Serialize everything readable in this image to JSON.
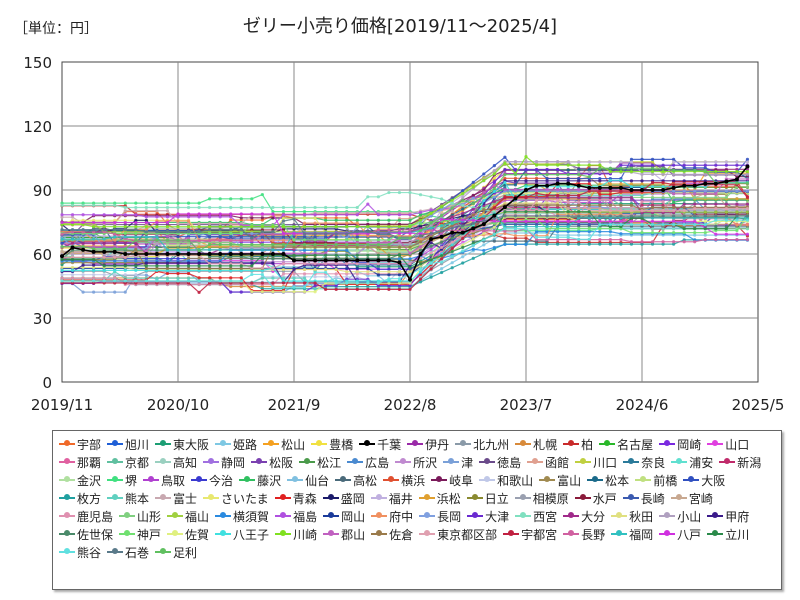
{
  "chart_data": {
    "type": "line",
    "unit_label": "［単位：円］",
    "title": "ゼリー小売り価格[2019/11～2025/4]",
    "ylim": [
      0,
      150
    ],
    "yticks": [
      0,
      30,
      60,
      90,
      120,
      150
    ],
    "x_tick_labels": [
      "2019/11",
      "2020/10",
      "2021/9",
      "2022/8",
      "2023/7",
      "2024/6",
      "2025/5"
    ],
    "x_tick_index": [
      0,
      11,
      22,
      33,
      44,
      55,
      66
    ],
    "n_points": 66,
    "series": [
      {
        "name": "宇部",
        "color": "#f06a2a"
      },
      {
        "name": "旭川",
        "color": "#1f5fd6"
      },
      {
        "name": "東大阪",
        "color": "#1c9e74"
      },
      {
        "name": "姫路",
        "color": "#7ec8e3"
      },
      {
        "name": "松山",
        "color": "#f4a020"
      },
      {
        "name": "豊橋",
        "color": "#f0e040"
      },
      {
        "name": "千葉",
        "color": "#000000"
      },
      {
        "name": "伊丹",
        "color": "#9a2aa8"
      },
      {
        "name": "北九州",
        "color": "#8a9aa8"
      },
      {
        "name": "札幌",
        "color": "#d88a3a"
      },
      {
        "name": "柏",
        "color": "#c82a2a"
      },
      {
        "name": "名古屋",
        "color": "#2ab82a"
      },
      {
        "name": "岡崎",
        "color": "#7a2ae0"
      },
      {
        "name": "山口",
        "color": "#e040e0"
      },
      {
        "name": "那覇",
        "color": "#e060a0"
      },
      {
        "name": "京都",
        "color": "#60c0a0"
      },
      {
        "name": "高知",
        "color": "#9ad0c0"
      },
      {
        "name": "静岡",
        "color": "#a070e0"
      },
      {
        "name": "松阪",
        "color": "#7a40b0"
      },
      {
        "name": "松江",
        "color": "#4a9a4a"
      },
      {
        "name": "広島",
        "color": "#4a8ad0"
      },
      {
        "name": "所沢",
        "color": "#c08ad0"
      },
      {
        "name": "津",
        "color": "#7aa0d8"
      },
      {
        "name": "徳島",
        "color": "#6a4a8a"
      },
      {
        "name": "函館",
        "color": "#e0a090"
      },
      {
        "name": "川口",
        "color": "#c0d040"
      },
      {
        "name": "奈良",
        "color": "#2a7a9a"
      },
      {
        "name": "浦安",
        "color": "#60e0d0"
      },
      {
        "name": "新潟",
        "color": "#c02a6a"
      },
      {
        "name": "金沢",
        "color": "#b0e0a0"
      },
      {
        "name": "堺",
        "color": "#40e080"
      },
      {
        "name": "鳥取",
        "color": "#b040d0"
      },
      {
        "name": "今治",
        "color": "#3a3ad0"
      },
      {
        "name": "藤沢",
        "color": "#30c060"
      },
      {
        "name": "仙台",
        "color": "#80c0e0"
      },
      {
        "name": "高松",
        "color": "#4a6a7a"
      },
      {
        "name": "横浜",
        "color": "#e05030"
      },
      {
        "name": "岐阜",
        "color": "#7a1a5a"
      },
      {
        "name": "和歌山",
        "color": "#c0c8e8"
      },
      {
        "name": "富山",
        "color": "#a08a50"
      },
      {
        "name": "松本",
        "color": "#1a6a8a"
      },
      {
        "name": "前橋",
        "color": "#c0e080"
      },
      {
        "name": "大阪",
        "color": "#3050c0"
      },
      {
        "name": "枚方",
        "color": "#20a0a0"
      },
      {
        "name": "熊本",
        "color": "#60d0c0"
      },
      {
        "name": "富士",
        "color": "#c8a8b0"
      },
      {
        "name": "さいたま",
        "color": "#e8e870"
      },
      {
        "name": "青森",
        "color": "#e02020"
      },
      {
        "name": "盛岡",
        "color": "#1a1a6a"
      },
      {
        "name": "福井",
        "color": "#c0b0e0"
      },
      {
        "name": "浜松",
        "color": "#e0a030"
      },
      {
        "name": "日立",
        "color": "#8a8a30"
      },
      {
        "name": "相模原",
        "color": "#9aa0b0"
      },
      {
        "name": "水戸",
        "color": "#8a1a3a"
      },
      {
        "name": "長崎",
        "color": "#3a5ab0"
      },
      {
        "name": "宮崎",
        "color": "#c8a890"
      },
      {
        "name": "鹿児島",
        "color": "#e090b0"
      },
      {
        "name": "山形",
        "color": "#80d080"
      },
      {
        "name": "福山",
        "color": "#a0d040"
      },
      {
        "name": "横須賀",
        "color": "#2a8ae0"
      },
      {
        "name": "福島",
        "color": "#b050e0"
      },
      {
        "name": "岡山",
        "color": "#1a3a9a"
      },
      {
        "name": "府中",
        "color": "#f09060"
      },
      {
        "name": "長岡",
        "color": "#80a0e0"
      },
      {
        "name": "大津",
        "color": "#6a2ad0"
      },
      {
        "name": "西宮",
        "color": "#80e0c0"
      },
      {
        "name": "大分",
        "color": "#a02a8a"
      },
      {
        "name": "秋田",
        "color": "#e0e080"
      },
      {
        "name": "小山",
        "color": "#b0a0c0"
      },
      {
        "name": "甲府",
        "color": "#3a1a8a"
      },
      {
        "name": "佐世保",
        "color": "#4a8a6a"
      },
      {
        "name": "神戸",
        "color": "#70e070"
      },
      {
        "name": "佐賀",
        "color": "#e0f080"
      },
      {
        "name": "八王子",
        "color": "#40e0e0"
      },
      {
        "name": "川崎",
        "color": "#80e020"
      },
      {
        "name": "郡山",
        "color": "#c060c0"
      },
      {
        "name": "佐倉",
        "color": "#9a7a4a"
      },
      {
        "name": "東京都区部",
        "color": "#e0a0b0"
      },
      {
        "name": "宇都宮",
        "color": "#c02040"
      },
      {
        "name": "長野",
        "color": "#d060a0"
      },
      {
        "name": "福岡",
        "color": "#30c0c0"
      },
      {
        "name": "八戸",
        "color": "#d030e0"
      },
      {
        "name": "立川",
        "color": "#2a8a4a"
      },
      {
        "name": "熊谷",
        "color": "#60e0e0"
      },
      {
        "name": "石巻",
        "color": "#5a7a8a"
      },
      {
        "name": "足利",
        "color": "#60c060"
      }
    ],
    "highlight_series": {
      "name": "千葉",
      "values": [
        59,
        63,
        62,
        61,
        61,
        61,
        60,
        60,
        60,
        60,
        60,
        60,
        60,
        60,
        60,
        60,
        60,
        60,
        60,
        60,
        60,
        60,
        57,
        57,
        57,
        57,
        57,
        57,
        57,
        57,
        57,
        57,
        56,
        48,
        60,
        67,
        68,
        70,
        70,
        72,
        74,
        78,
        82,
        86,
        90,
        92,
        92,
        93,
        93,
        92,
        91,
        91,
        91,
        91,
        90,
        90,
        90,
        90,
        91,
        92,
        92,
        93,
        93,
        94,
        95,
        101
      ]
    }
  }
}
